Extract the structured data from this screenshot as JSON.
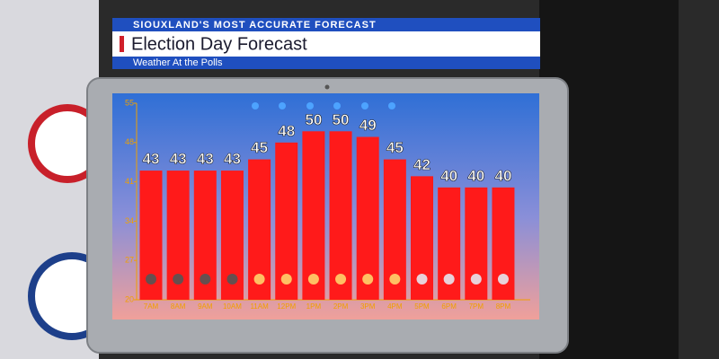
{
  "header": {
    "kicker": "SIOUXLAND'S MOST ACCURATE FORECAST",
    "title": "Election Day Forecast",
    "subtitle": "Weather At the Polls"
  },
  "chart_data": {
    "type": "bar",
    "categories": [
      "7AM",
      "8AM",
      "9AM",
      "10AM",
      "11AM",
      "12PM",
      "1PM",
      "2PM",
      "3PM",
      "4PM",
      "5PM",
      "6PM",
      "7PM",
      "8PM"
    ],
    "values": [
      43,
      43,
      43,
      43,
      45,
      48,
      50,
      50,
      49,
      45,
      42,
      40,
      40,
      40
    ],
    "color": "#ff1a1a",
    "ylim": [
      20,
      55
    ],
    "yticks": [
      20,
      27,
      34,
      41,
      48,
      55
    ]
  }
}
